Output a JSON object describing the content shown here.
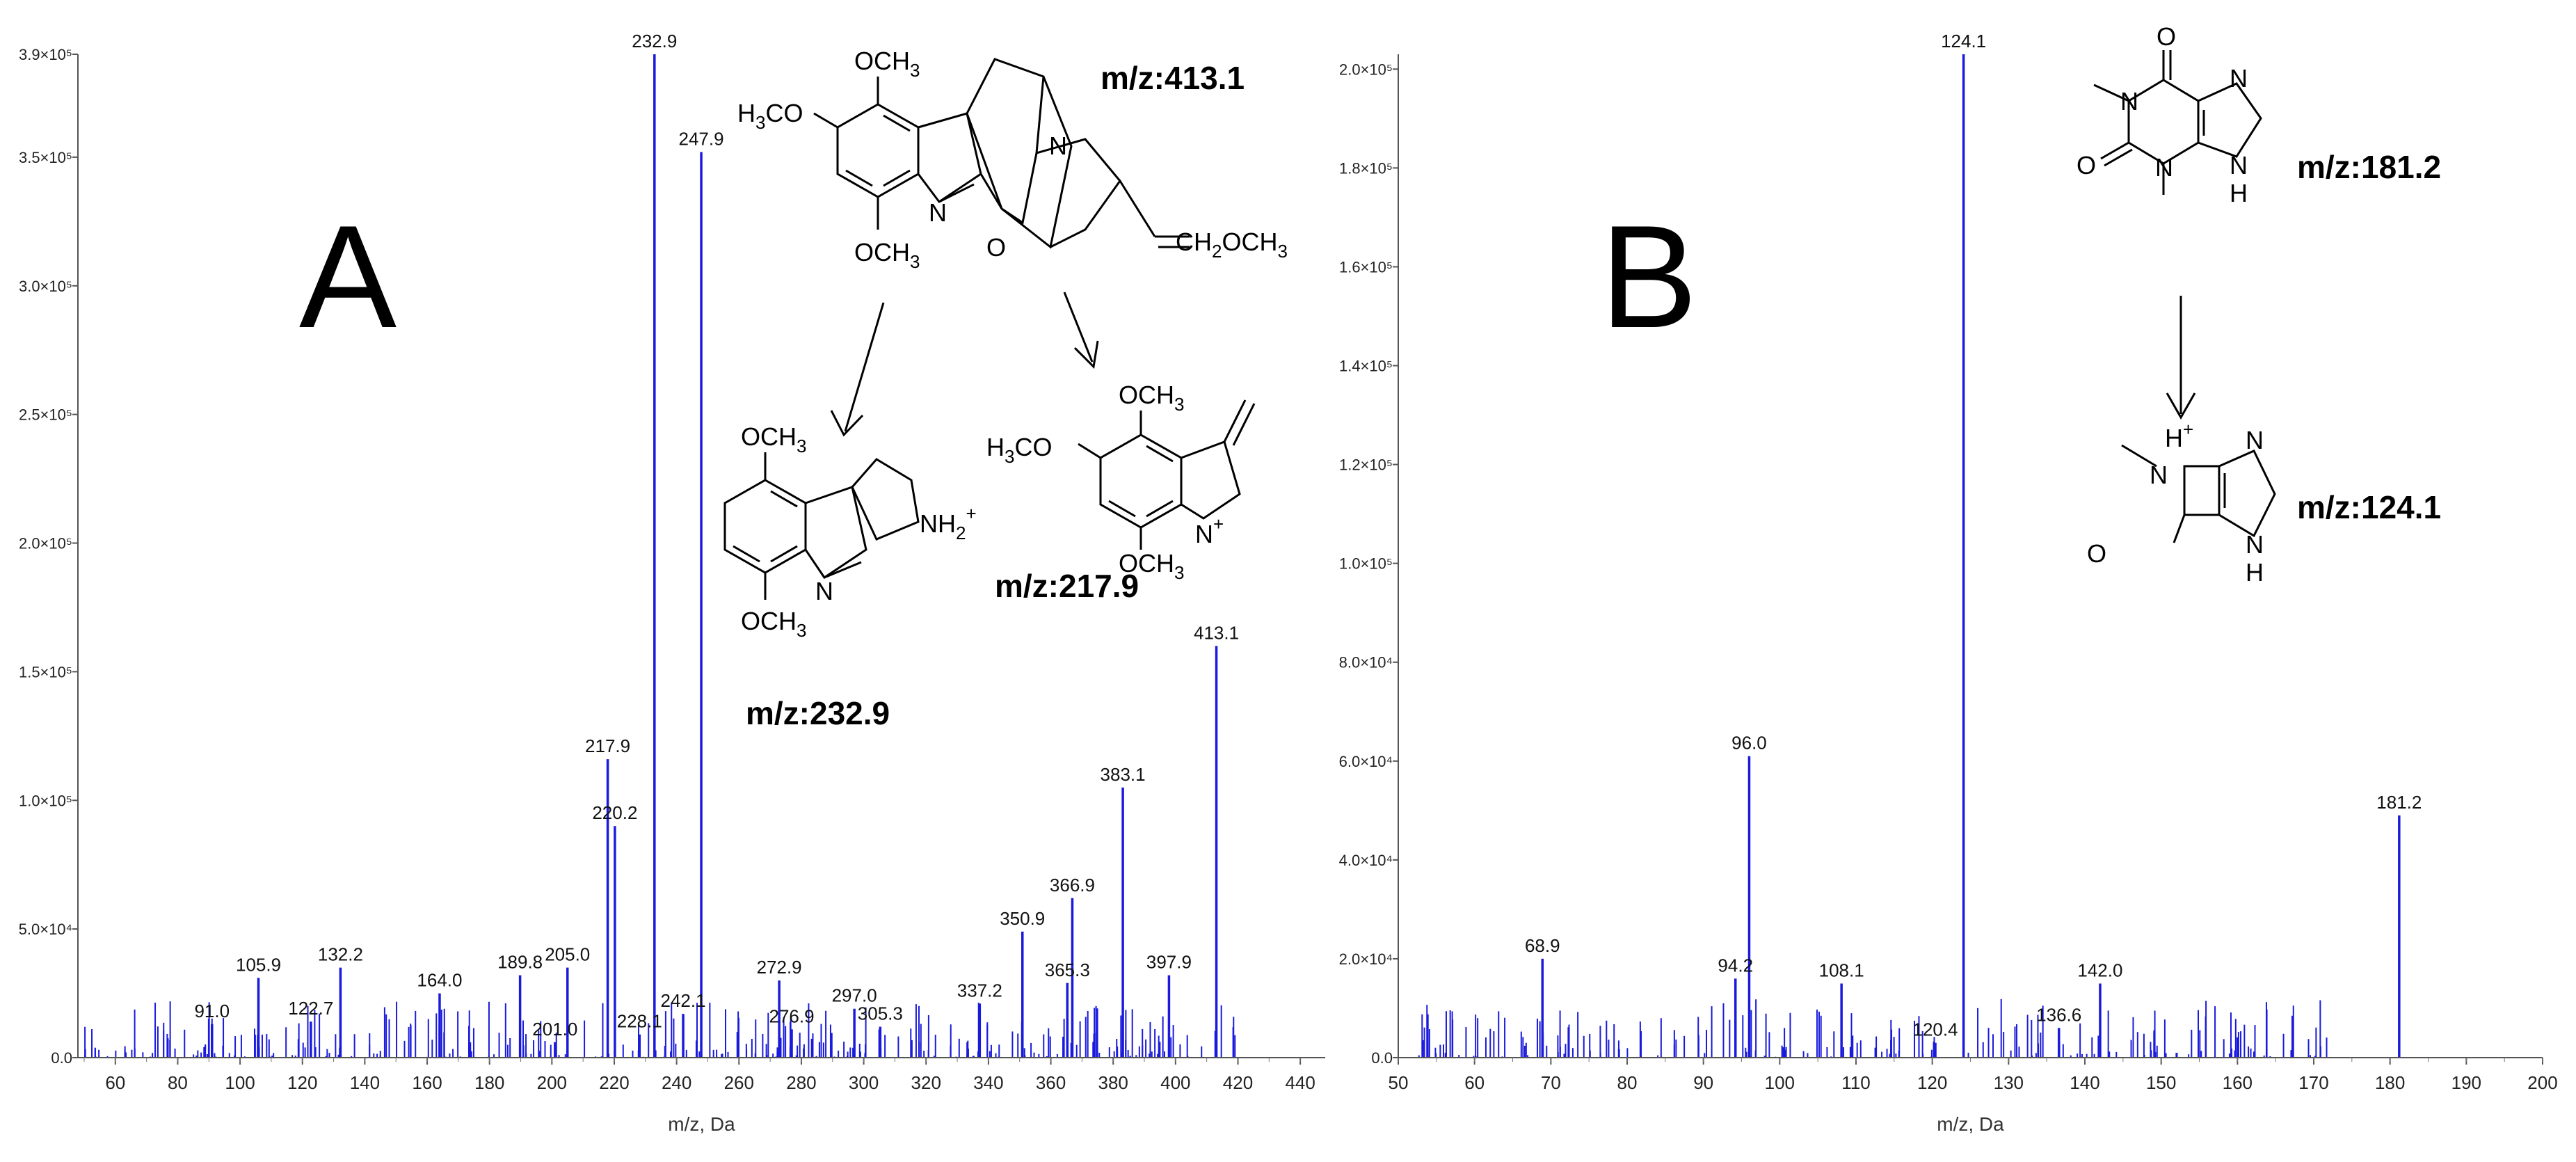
{
  "chart_data": [
    {
      "type": "bar",
      "panel_label": "A",
      "xlabel": "m/z, Da",
      "ylabel": "",
      "xlim": [
        48,
        448
      ],
      "ylim": [
        0,
        390000
      ],
      "xticks": [
        "60",
        "80",
        "100",
        "120",
        "140",
        "160",
        "180",
        "200",
        "220",
        "240",
        "260",
        "280",
        "300",
        "320",
        "340",
        "360",
        "380",
        "400",
        "420",
        "440"
      ],
      "yticks": [
        {
          "value": 0,
          "label": "0.0"
        },
        {
          "value": 50000,
          "label": "5.0×10⁴"
        },
        {
          "value": 100000,
          "label": "1.0×10⁵"
        },
        {
          "value": 150000,
          "label": "1.5×10⁵"
        },
        {
          "value": 200000,
          "label": "2.0×10⁵"
        },
        {
          "value": 250000,
          "label": "2.5×10⁵"
        },
        {
          "value": 300000,
          "label": "3.0×10⁵"
        },
        {
          "value": 350000,
          "label": "3.5×10⁵"
        },
        {
          "value": 390000,
          "label": "3.9×10⁵"
        }
      ],
      "color": "#1a1adc",
      "peaks": [
        {
          "x": 91.0,
          "y": 13000,
          "label": "91.0"
        },
        {
          "x": 105.9,
          "y": 31000,
          "label": "105.9"
        },
        {
          "x": 122.7,
          "y": 14000,
          "label": "122.7"
        },
        {
          "x": 132.2,
          "y": 35000,
          "label": "132.2"
        },
        {
          "x": 164.0,
          "y": 25000,
          "label": "164.0"
        },
        {
          "x": 189.8,
          "y": 32000,
          "label": "189.8"
        },
        {
          "x": 201.0,
          "y": 6000,
          "label": "201.0"
        },
        {
          "x": 205.0,
          "y": 35000,
          "label": "205.0"
        },
        {
          "x": 217.9,
          "y": 116000,
          "label": "217.9"
        },
        {
          "x": 220.2,
          "y": 90000,
          "label": "220.2"
        },
        {
          "x": 228.1,
          "y": 9000,
          "label": "228.1"
        },
        {
          "x": 232.9,
          "y": 390000,
          "label": "232.9"
        },
        {
          "x": 242.1,
          "y": 17000,
          "label": "242.1"
        },
        {
          "x": 247.9,
          "y": 352000,
          "label": "247.9"
        },
        {
          "x": 272.9,
          "y": 30000,
          "label": "272.9"
        },
        {
          "x": 276.9,
          "y": 11000,
          "label": "276.9"
        },
        {
          "x": 297.0,
          "y": 19000,
          "label": "297.0"
        },
        {
          "x": 305.3,
          "y": 12000,
          "label": "305.3"
        },
        {
          "x": 337.2,
          "y": 21000,
          "label": "337.2"
        },
        {
          "x": 350.9,
          "y": 49000,
          "label": "350.9"
        },
        {
          "x": 365.3,
          "y": 29000,
          "label": "365.3"
        },
        {
          "x": 366.9,
          "y": 62000,
          "label": "366.9"
        },
        {
          "x": 383.1,
          "y": 105000,
          "label": "383.1"
        },
        {
          "x": 397.9,
          "y": 32000,
          "label": "397.9"
        },
        {
          "x": 413.1,
          "y": 160000,
          "label": "413.1"
        }
      ],
      "annotations": {
        "parent_mz": "m/z:413.1",
        "fragment1_mz": "m/z:232.9",
        "fragment2_mz": "m/z:217.9"
      }
    },
    {
      "type": "bar",
      "panel_label": "B",
      "xlabel": "m/z, Da",
      "ylabel": "",
      "xlim": [
        50,
        200
      ],
      "ylim": [
        0,
        203000
      ],
      "xticks": [
        "50",
        "60",
        "70",
        "80",
        "90",
        "100",
        "110",
        "120",
        "130",
        "140",
        "150",
        "160",
        "170",
        "180",
        "190",
        "200"
      ],
      "yticks": [
        {
          "value": 0,
          "label": "0.0"
        },
        {
          "value": 20000,
          "label": "2.0×10⁴"
        },
        {
          "value": 40000,
          "label": "4.0×10⁴"
        },
        {
          "value": 60000,
          "label": "6.0×10⁴"
        },
        {
          "value": 80000,
          "label": "8.0×10⁴"
        },
        {
          "value": 100000,
          "label": "1.0×10⁵"
        },
        {
          "value": 120000,
          "label": "1.2×10⁵"
        },
        {
          "value": 140000,
          "label": "1.4×10⁵"
        },
        {
          "value": 160000,
          "label": "1.6×10⁵"
        },
        {
          "value": 180000,
          "label": "1.8×10⁵"
        },
        {
          "value": 200000,
          "label": "2.0×10⁵"
        }
      ],
      "color": "#1a1adc",
      "peaks": [
        {
          "x": 68.9,
          "y": 20000,
          "label": "68.9"
        },
        {
          "x": 94.2,
          "y": 16000,
          "label": "94.2"
        },
        {
          "x": 96.0,
          "y": 61000,
          "label": "96.0"
        },
        {
          "x": 108.1,
          "y": 15000,
          "label": "108.1"
        },
        {
          "x": 120.4,
          "y": 3000,
          "label": "120.4"
        },
        {
          "x": 124.1,
          "y": 203000,
          "label": "124.1"
        },
        {
          "x": 136.6,
          "y": 6000,
          "label": "136.6"
        },
        {
          "x": 142.0,
          "y": 15000,
          "label": "142.0"
        },
        {
          "x": 181.2,
          "y": 49000,
          "label": "181.2"
        }
      ],
      "annotations": {
        "parent_mz": "m/z:181.2",
        "fragment_mz": "m/z:124.1"
      }
    }
  ],
  "structures": {
    "och3": "OCH",
    "h3co": "H",
    "n": "N",
    "o": "O",
    "h": "H",
    "nh2": "NH",
    "ch2och3": "CH",
    "plus": "+",
    "sub3": "3",
    "sub2": "2",
    "co": "CO",
    "och3_tail": "OCH"
  }
}
